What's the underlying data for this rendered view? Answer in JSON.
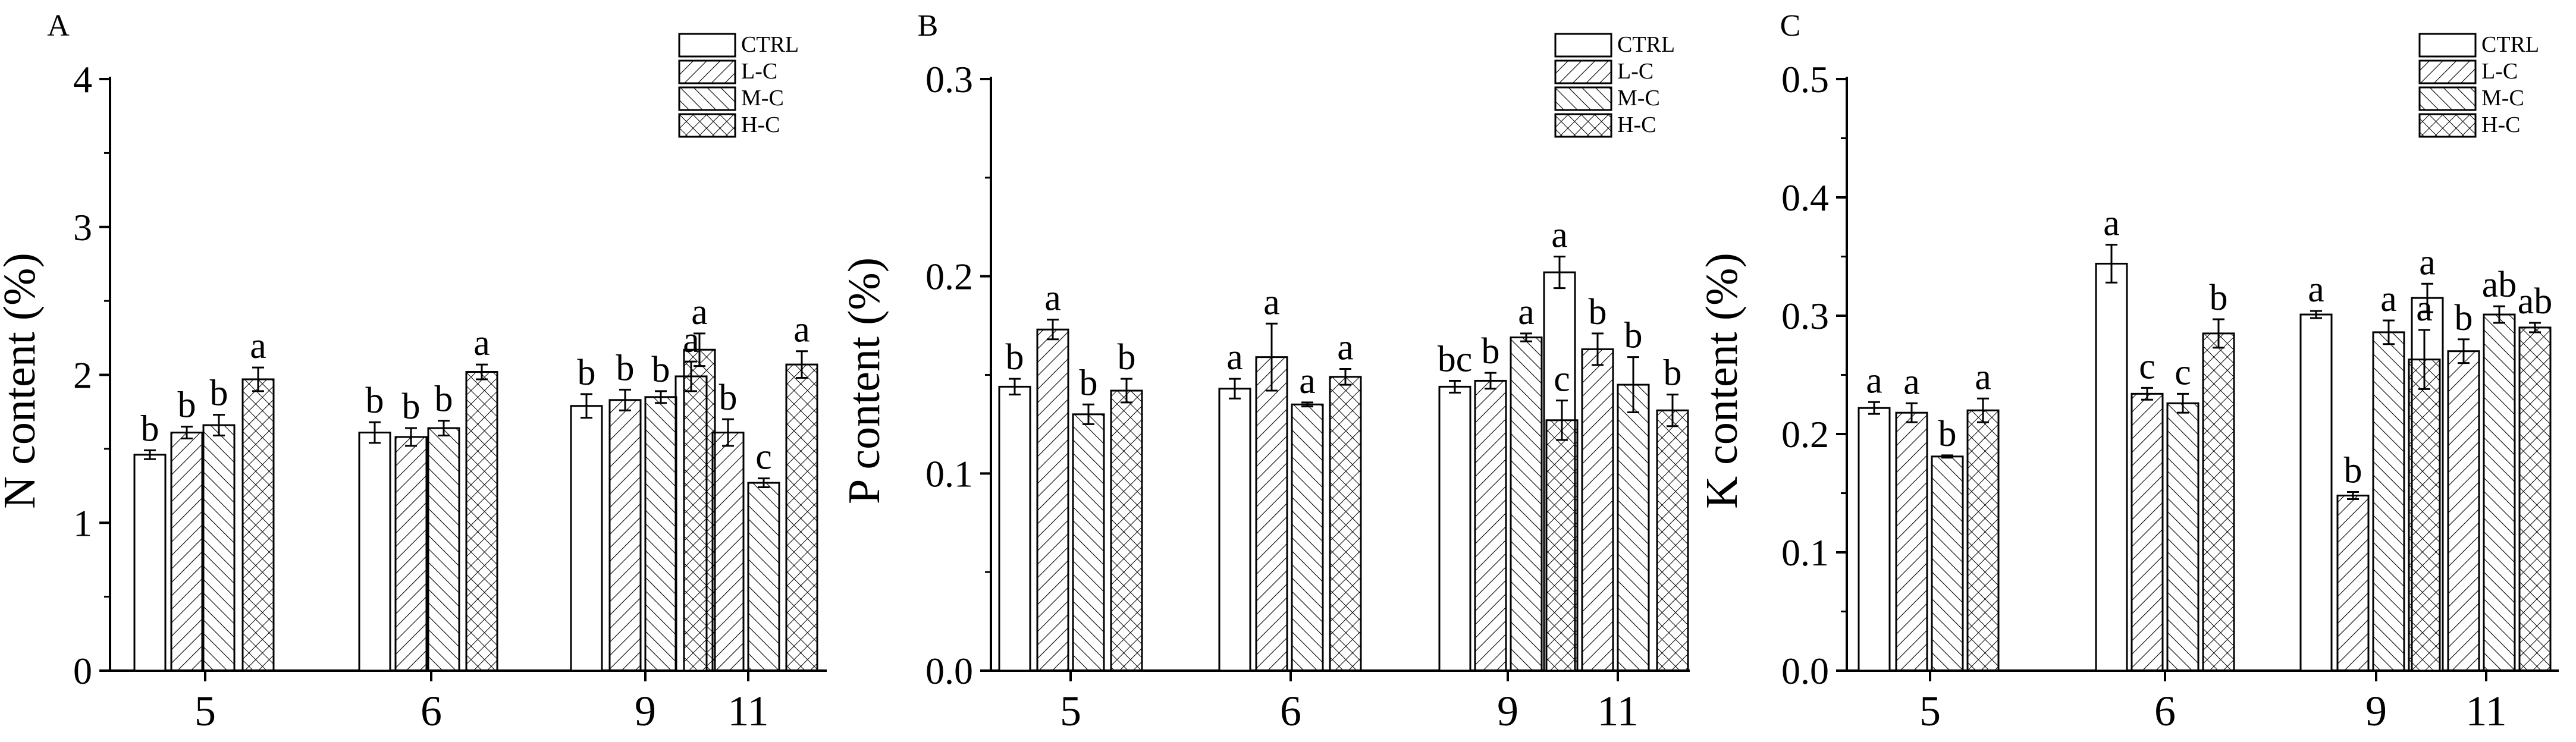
{
  "chart_data": [
    {
      "panel_label": "A",
      "type": "bar",
      "ylabel": "N content (%)",
      "ylim": [
        0,
        4
      ],
      "yticks": [
        "0",
        "1",
        "2",
        "3",
        "4"
      ],
      "categories": [
        "5",
        "6",
        "9",
        "11"
      ],
      "legend_position": "top-right",
      "series": [
        {
          "name": "CTRL",
          "values": [
            1.46,
            1.61,
            1.79,
            1.99
          ],
          "errors": [
            0.03,
            0.07,
            0.08,
            0.1
          ],
          "letters": [
            "b",
            "b",
            "b",
            "a"
          ]
        },
        {
          "name": "L-C",
          "values": [
            1.61,
            1.58,
            1.83,
            1.61
          ],
          "errors": [
            0.04,
            0.06,
            0.07,
            0.09
          ],
          "letters": [
            "b",
            "b",
            "b",
            "b"
          ]
        },
        {
          "name": "M-C",
          "values": [
            1.66,
            1.64,
            1.85,
            1.27
          ],
          "errors": [
            0.07,
            0.05,
            0.04,
            0.03
          ],
          "letters": [
            "b",
            "b",
            "b",
            "c"
          ]
        },
        {
          "name": "H-C",
          "values": [
            1.97,
            2.02,
            2.17,
            2.07
          ],
          "errors": [
            0.08,
            0.05,
            0.11,
            0.09
          ],
          "letters": [
            "a",
            "a",
            "a",
            "a"
          ]
        }
      ]
    },
    {
      "panel_label": "B",
      "type": "bar",
      "ylabel": "P content (%)",
      "ylim": [
        0,
        0.3
      ],
      "yticks": [
        "0.0",
        "0.1",
        "0.2",
        "0.3"
      ],
      "categories": [
        "5",
        "6",
        "9",
        "11"
      ],
      "legend_position": "top-right",
      "series": [
        {
          "name": "CTRL",
          "values": [
            0.144,
            0.143,
            0.144,
            0.202
          ],
          "errors": [
            0.004,
            0.005,
            0.003,
            0.008
          ],
          "letters": [
            "b",
            "a",
            "bc",
            "a"
          ]
        },
        {
          "name": "L-C",
          "values": [
            0.173,
            0.159,
            0.147,
            0.163
          ],
          "errors": [
            0.005,
            0.017,
            0.004,
            0.008
          ],
          "letters": [
            "a",
            "a",
            "b",
            "b"
          ]
        },
        {
          "name": "M-C",
          "values": [
            0.13,
            0.135,
            0.169,
            0.145
          ],
          "errors": [
            0.005,
            0.001,
            0.002,
            0.014
          ],
          "letters": [
            "b",
            "a",
            "a",
            "b"
          ]
        },
        {
          "name": "H-C",
          "values": [
            0.142,
            0.149,
            0.127,
            0.132
          ],
          "errors": [
            0.006,
            0.004,
            0.01,
            0.008
          ],
          "letters": [
            "b",
            "a",
            "c",
            "b"
          ]
        }
      ]
    },
    {
      "panel_label": "C",
      "type": "bar",
      "ylabel": "K content (%)",
      "ylim": [
        0,
        0.5
      ],
      "yticks": [
        "0.0",
        "0.1",
        "0.2",
        "0.3",
        "0.4",
        "0.5"
      ],
      "categories": [
        "5",
        "6",
        "9",
        "11"
      ],
      "legend_position": "top-right",
      "series": [
        {
          "name": "CTRL",
          "values": [
            0.222,
            0.344,
            0.301,
            0.315
          ],
          "errors": [
            0.005,
            0.016,
            0.003,
            0.012
          ],
          "letters": [
            "a",
            "a",
            "a",
            "a"
          ]
        },
        {
          "name": "L-C",
          "values": [
            0.218,
            0.234,
            0.148,
            0.27
          ],
          "errors": [
            0.008,
            0.005,
            0.003,
            0.01
          ],
          "letters": [
            "a",
            "c",
            "b",
            "b"
          ]
        },
        {
          "name": "M-C",
          "values": [
            0.181,
            0.226,
            0.286,
            0.301
          ],
          "errors": [
            0.001,
            0.008,
            0.01,
            0.007
          ],
          "letters": [
            "b",
            "c",
            "a",
            "ab"
          ]
        },
        {
          "name": "H-C",
          "values": [
            0.22,
            0.285,
            0.263,
            0.29
          ],
          "errors": [
            0.01,
            0.012,
            0.025,
            0.004
          ],
          "letters": [
            "a",
            "b",
            "a",
            "ab"
          ]
        }
      ]
    }
  ]
}
